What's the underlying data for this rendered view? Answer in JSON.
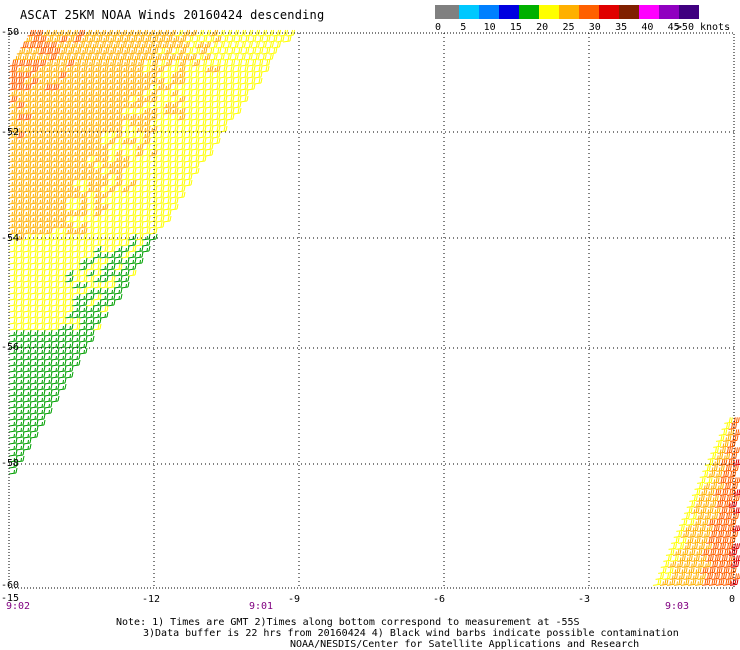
{
  "title": "ASCAT 25KM NOAA Winds 20160424 descending",
  "legend": {
    "labels": [
      "0",
      "5",
      "10",
      "15",
      "20",
      "25",
      "30",
      "35",
      "40",
      "45",
      ">50 knots"
    ],
    "colors": [
      "#808080",
      "#00c8ff",
      "#0080ff",
      "#0000e0",
      "#00b000",
      "#ffff00",
      "#ffb000",
      "#ff6000",
      "#e00000",
      "#802000",
      "#ff00ff",
      "#9000c0",
      "#400080"
    ]
  },
  "axes": {
    "lat_labels": [
      "-50",
      "-52",
      "-54",
      "-56",
      "-58",
      "-60"
    ],
    "lon_labels": [
      "-15",
      "-12",
      "-9",
      "-6",
      "-3",
      "0"
    ]
  },
  "times": [
    "9:02",
    "9:01",
    "9:03"
  ],
  "notes": [
    "Note: 1) Times are GMT 2)Times along bottom correspond to measurement at -55S",
    "3)Data buffer is 22 hrs from 20160424 4) Black wind barbs indicate possible contamination",
    "NOAA/NESDIS/Center for Satellite Applications and Research"
  ],
  "chart_data": {
    "type": "map",
    "lon_range": [
      -15,
      0
    ],
    "lat_range": [
      -60,
      -50
    ],
    "grid": "dotted",
    "units": "knots",
    "swaths": [
      {
        "name": "west-swath-north",
        "lon_range": [
          -15,
          -9
        ],
        "lat_range": [
          -56,
          -50
        ],
        "speed_knots": [
          20,
          30
        ]
      },
      {
        "name": "west-swath-south",
        "lon_range": [
          -15,
          -12.5
        ],
        "lat_range": [
          -58.5,
          -55.5
        ],
        "speed_knots": [
          15,
          20
        ]
      },
      {
        "name": "east-swath",
        "lon_range": [
          -1.7,
          0
        ],
        "lat_range": [
          -60,
          -57
        ],
        "speed_knots": [
          25,
          35
        ]
      }
    ]
  }
}
